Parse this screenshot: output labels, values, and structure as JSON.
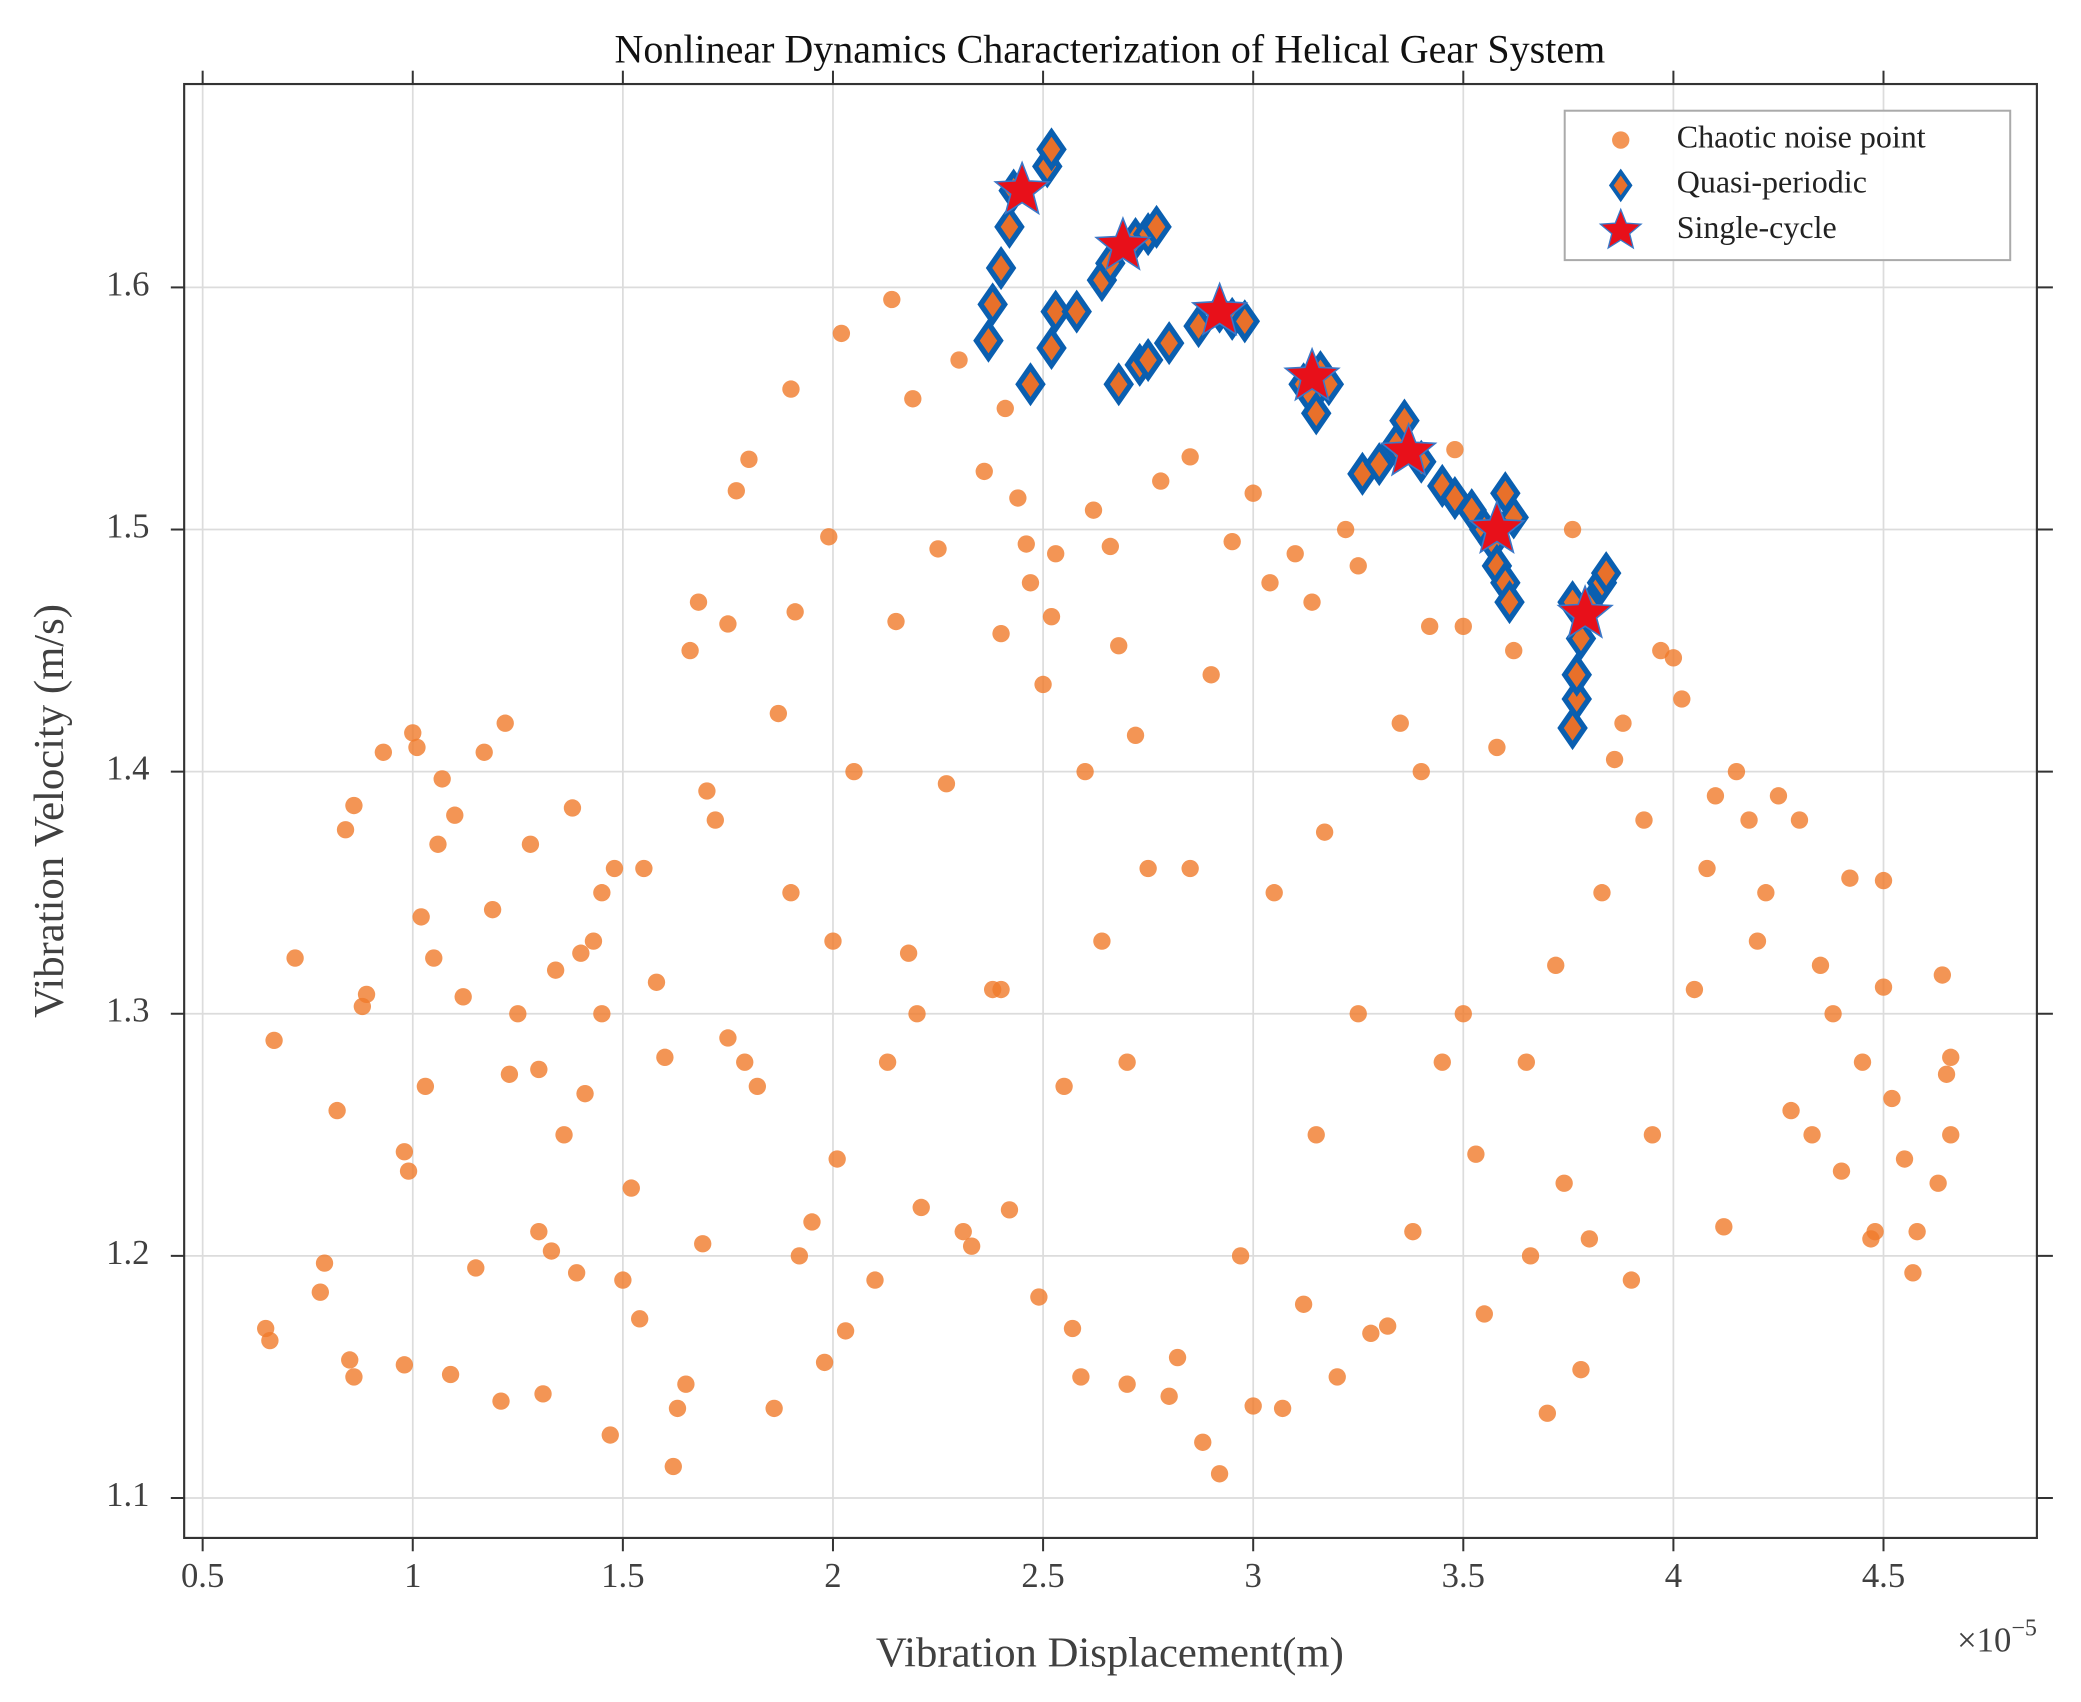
{
  "chart_data": {
    "type": "scatter",
    "title": "Nonlinear Dynamics Characterization of Helical Gear System",
    "xlabel": "Vibration Displacement(m)",
    "ylabel": "Vibration Velocity (m/s)",
    "x_offset": {
      "base": "×10",
      "exponent": "−5"
    },
    "xlim": [
      4.56e-06,
      4.865e-05
    ],
    "ylim": [
      1.0835,
      1.684
    ],
    "xticks": [
      {
        "value": 5e-06,
        "label": "0.5"
      },
      {
        "value": 1e-05,
        "label": "1"
      },
      {
        "value": 1.5e-05,
        "label": "1.5"
      },
      {
        "value": 2e-05,
        "label": "2"
      },
      {
        "value": 2.5e-05,
        "label": "2.5"
      },
      {
        "value": 3e-05,
        "label": "3"
      },
      {
        "value": 3.5e-05,
        "label": "3.5"
      },
      {
        "value": 4e-05,
        "label": "4"
      },
      {
        "value": 4.5e-05,
        "label": "4.5"
      }
    ],
    "yticks": [
      1.1,
      1.2,
      1.3,
      1.4,
      1.5,
      1.6
    ],
    "grid": true,
    "legend": "upper right",
    "series": [
      {
        "name": "Chaotic noise point",
        "marker": "circle",
        "color": "#f07a2a",
        "x": [
          6.5e-06,
          6.6e-06,
          6.7e-06,
          7.2e-06,
          7.9e-06,
          7.8e-06,
          8.2e-06,
          8.4e-06,
          8.6e-06,
          8.5e-06,
          8.6e-06,
          8.8e-06,
          8.9e-06,
          9.3e-06,
          9.8e-06,
          9.8e-06,
          9.9e-06,
          1e-05,
          1.01e-05,
          1.02e-05,
          1.03e-05,
          1.05e-05,
          1.06e-05,
          1.07e-05,
          1.09e-05,
          1.1e-05,
          1.12e-05,
          1.15e-05,
          1.17e-05,
          1.19e-05,
          1.21e-05,
          1.22e-05,
          1.23e-05,
          1.25e-05,
          1.28e-05,
          1.3e-05,
          1.3e-05,
          1.31e-05,
          1.33e-05,
          1.34e-05,
          1.36e-05,
          1.38e-05,
          1.39e-05,
          1.4e-05,
          1.41e-05,
          1.43e-05,
          1.45e-05,
          1.47e-05,
          1.48e-05,
          1.5e-05,
          1.52e-05,
          1.54e-05,
          1.55e-05,
          1.58e-05,
          1.6e-05,
          1.62e-05,
          1.63e-05,
          1.65e-05,
          1.66e-05,
          1.68e-05,
          1.69e-05,
          1.7e-05,
          1.72e-05,
          1.75e-05,
          1.77e-05,
          1.8e-05,
          1.79e-05,
          1.82e-05,
          1.86e-05,
          1.87e-05,
          1.9e-05,
          1.91e-05,
          1.92e-05,
          1.95e-05,
          1.98e-05,
          1.99e-05,
          2.01e-05,
          2.02e-05,
          2.03e-05,
          2.05e-05,
          2.1e-05,
          2.13e-05,
          2.14e-05,
          2.15e-05,
          2.18e-05,
          2.19e-05,
          2.21e-05,
          2.25e-05,
          2.27e-05,
          2.3e-05,
          2.31e-05,
          2.33e-05,
          2.36e-05,
          2.38e-05,
          2.4e-05,
          2.41e-05,
          2.42e-05,
          2.44e-05,
          2.46e-05,
          2.47e-05,
          2.49e-05,
          2.5e-05,
          2.52e-05,
          2.53e-05,
          2.55e-05,
          2.57e-05,
          2.59e-05,
          2.62e-05,
          2.64e-05,
          2.66e-05,
          2.68e-05,
          2.7e-05,
          2.72e-05,
          2.75e-05,
          2.78e-05,
          2.8e-05,
          2.82e-05,
          2.85e-05,
          2.88e-05,
          2.9e-05,
          2.92e-05,
          2.95e-05,
          2.97e-05,
          3e-05,
          3e-05,
          3.04e-05,
          3.07e-05,
          3.1e-05,
          3.12e-05,
          3.14e-05,
          3.17e-05,
          3.2e-05,
          3.22e-05,
          3.25e-05,
          3.28e-05,
          3.32e-05,
          3.35e-05,
          3.38e-05,
          3.4e-05,
          3.42e-05,
          3.45e-05,
          3.48e-05,
          3.5e-05,
          3.53e-05,
          3.55e-05,
          3.58e-05,
          3.62e-05,
          3.66e-05,
          3.7e-05,
          3.72e-05,
          3.74e-05,
          3.76e-05,
          3.78e-05,
          3.8e-05,
          3.83e-05,
          3.86e-05,
          3.88e-05,
          3.9e-05,
          3.93e-05,
          3.95e-05,
          3.97e-05,
          4e-05,
          4.02e-05,
          4.05e-05,
          4.08e-05,
          4.1e-05,
          4.12e-05,
          4.15e-05,
          4.18e-05,
          4.2e-05,
          4.22e-05,
          4.25e-05,
          4.28e-05,
          4.3e-05,
          4.33e-05,
          4.35e-05,
          4.38e-05,
          4.4e-05,
          4.42e-05,
          4.45e-05,
          4.47e-05,
          4.48e-05,
          4.5e-05,
          4.5e-05,
          4.52e-05,
          4.55e-05,
          4.57e-05,
          4.58e-05,
          4.63e-05,
          4.64e-05,
          4.65e-05,
          4.66e-05,
          4.66e-05,
          2.2e-05,
          2e-05,
          1.9e-05,
          2.6e-05,
          2.85e-05,
          3.05e-05,
          3.25e-05,
          3.5e-05,
          2.4e-05,
          1.75e-05,
          1.45e-05,
          3.65e-05,
          2.7e-05,
          3.15e-05
        ],
        "y": [
          1.17,
          1.165,
          1.289,
          1.323,
          1.197,
          1.185,
          1.26,
          1.376,
          1.386,
          1.157,
          1.15,
          1.303,
          1.308,
          1.408,
          1.243,
          1.155,
          1.235,
          1.416,
          1.41,
          1.34,
          1.27,
          1.323,
          1.37,
          1.397,
          1.151,
          1.382,
          1.307,
          1.195,
          1.408,
          1.343,
          1.14,
          1.42,
          1.275,
          1.3,
          1.37,
          1.277,
          1.21,
          1.143,
          1.202,
          1.318,
          1.25,
          1.385,
          1.193,
          1.325,
          1.267,
          1.33,
          1.3,
          1.126,
          1.36,
          1.19,
          1.228,
          1.174,
          1.36,
          1.313,
          1.282,
          1.113,
          1.137,
          1.147,
          1.45,
          1.47,
          1.205,
          1.392,
          1.38,
          1.461,
          1.516,
          1.529,
          1.28,
          1.27,
          1.137,
          1.424,
          1.558,
          1.466,
          1.2,
          1.214,
          1.156,
          1.497,
          1.24,
          1.581,
          1.169,
          1.4,
          1.19,
          1.28,
          1.595,
          1.462,
          1.325,
          1.554,
          1.22,
          1.492,
          1.395,
          1.57,
          1.21,
          1.204,
          1.524,
          1.31,
          1.457,
          1.55,
          1.219,
          1.513,
          1.494,
          1.478,
          1.183,
          1.436,
          1.464,
          1.49,
          1.27,
          1.17,
          1.15,
          1.508,
          1.33,
          1.493,
          1.452,
          1.147,
          1.415,
          1.36,
          1.52,
          1.142,
          1.158,
          1.53,
          1.123,
          1.44,
          1.11,
          1.495,
          1.2,
          1.138,
          1.515,
          1.478,
          1.137,
          1.49,
          1.18,
          1.47,
          1.375,
          1.15,
          1.5,
          1.485,
          1.168,
          1.171,
          1.42,
          1.21,
          1.4,
          1.46,
          1.28,
          1.533,
          1.46,
          1.242,
          1.176,
          1.41,
          1.45,
          1.2,
          1.135,
          1.32,
          1.23,
          1.5,
          1.153,
          1.207,
          1.35,
          1.405,
          1.42,
          1.19,
          1.38,
          1.25,
          1.45,
          1.447,
          1.43,
          1.31,
          1.36,
          1.39,
          1.212,
          1.4,
          1.38,
          1.33,
          1.35,
          1.39,
          1.26,
          1.38,
          1.25,
          1.32,
          1.3,
          1.235,
          1.356,
          1.28,
          1.207,
          1.21,
          1.355,
          1.311,
          1.265,
          1.24,
          1.193,
          1.21,
          1.23,
          1.316,
          1.275,
          1.25,
          1.282,
          1.3,
          1.33,
          1.35,
          1.4,
          1.36,
          1.35,
          1.3,
          1.3,
          1.31,
          1.29,
          1.35,
          1.28,
          1.28,
          1.25
        ]
      },
      {
        "name": "Quasi-periodic",
        "marker": "diamond",
        "color": "#e8702a",
        "edgecolor": "#0a5fb0",
        "x": [
          2.37e-05,
          2.38e-05,
          2.4e-05,
          2.42e-05,
          2.43e-05,
          2.47e-05,
          2.52e-05,
          2.53e-05,
          2.51e-05,
          2.52e-05,
          2.68e-05,
          2.73e-05,
          2.75e-05,
          2.8e-05,
          2.64e-05,
          2.66e-05,
          2.72e-05,
          2.75e-05,
          2.77e-05,
          2.58e-05,
          2.87e-05,
          2.92e-05,
          2.95e-05,
          2.98e-05,
          3.12e-05,
          3.14e-05,
          3.15e-05,
          3.16e-05,
          3.18e-05,
          3.26e-05,
          3.3e-05,
          3.34e-05,
          3.36e-05,
          3.4e-05,
          3.45e-05,
          3.48e-05,
          3.52e-05,
          3.55e-05,
          3.57e-05,
          3.58e-05,
          3.6e-05,
          3.61e-05,
          3.6e-05,
          3.62e-05,
          3.76e-05,
          3.77e-05,
          3.77e-05,
          3.78e-05,
          3.8e-05,
          3.83e-05,
          3.84e-05,
          3.76e-05
        ],
        "y": [
          1.578,
          1.593,
          1.608,
          1.625,
          1.64,
          1.56,
          1.575,
          1.59,
          1.65,
          1.657,
          1.56,
          1.568,
          1.57,
          1.577,
          1.603,
          1.61,
          1.62,
          1.622,
          1.625,
          1.59,
          1.584,
          1.59,
          1.587,
          1.586,
          1.56,
          1.555,
          1.548,
          1.565,
          1.56,
          1.523,
          1.527,
          1.535,
          1.545,
          1.528,
          1.518,
          1.513,
          1.508,
          1.5,
          1.495,
          1.485,
          1.478,
          1.47,
          1.515,
          1.505,
          1.418,
          1.43,
          1.44,
          1.455,
          1.468,
          1.478,
          1.482,
          1.47
        ]
      },
      {
        "name": "Single-cycle",
        "marker": "star",
        "color": "#e8101a",
        "edgecolor": "#3a78c8",
        "x": [
          2.45e-05,
          2.69e-05,
          2.92e-05,
          3.14e-05,
          3.37e-05,
          3.58e-05,
          3.79e-05
        ],
        "y": [
          1.64,
          1.617,
          1.59,
          1.563,
          1.532,
          1.5,
          1.465
        ]
      }
    ]
  }
}
